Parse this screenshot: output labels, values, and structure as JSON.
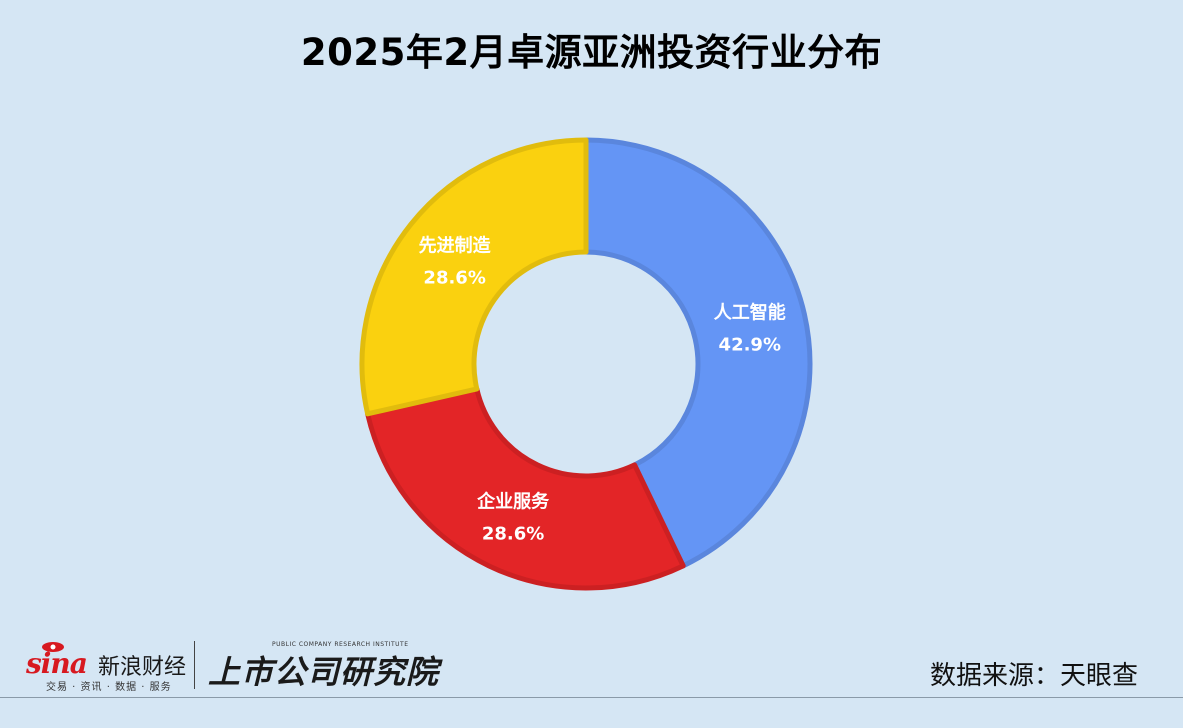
{
  "title": "2025年2月卓源亚洲投资行业分布",
  "chart_data": {
    "type": "pie",
    "variant": "donut",
    "title": "2025年2月卓源亚洲投资行业分布",
    "categories": [
      "人工智能",
      "企业服务",
      "先进制造"
    ],
    "values": [
      42.9,
      28.6,
      28.6
    ],
    "value_labels": [
      "42.9%",
      "28.6%",
      "28.6%"
    ],
    "colors": [
      "#6495f5",
      "#e32527",
      "#fad10f"
    ],
    "border_colors": [
      "#5a86dd",
      "#cc2022",
      "#e1bc0d"
    ],
    "legend": "none"
  },
  "source_note": "数据来源：天眼查",
  "logos": {
    "sina_word": "sina",
    "sina_name": "新浪财经",
    "sina_tagline": "交易 · 资讯 · 数据 · 服务",
    "institute_cn": "上市公司研究院",
    "institute_en": "PUBLIC COMPANY RESEARCH INSTITUTE"
  },
  "colors": {
    "background": "#d5e6f4",
    "brand_red": "#d71920"
  }
}
